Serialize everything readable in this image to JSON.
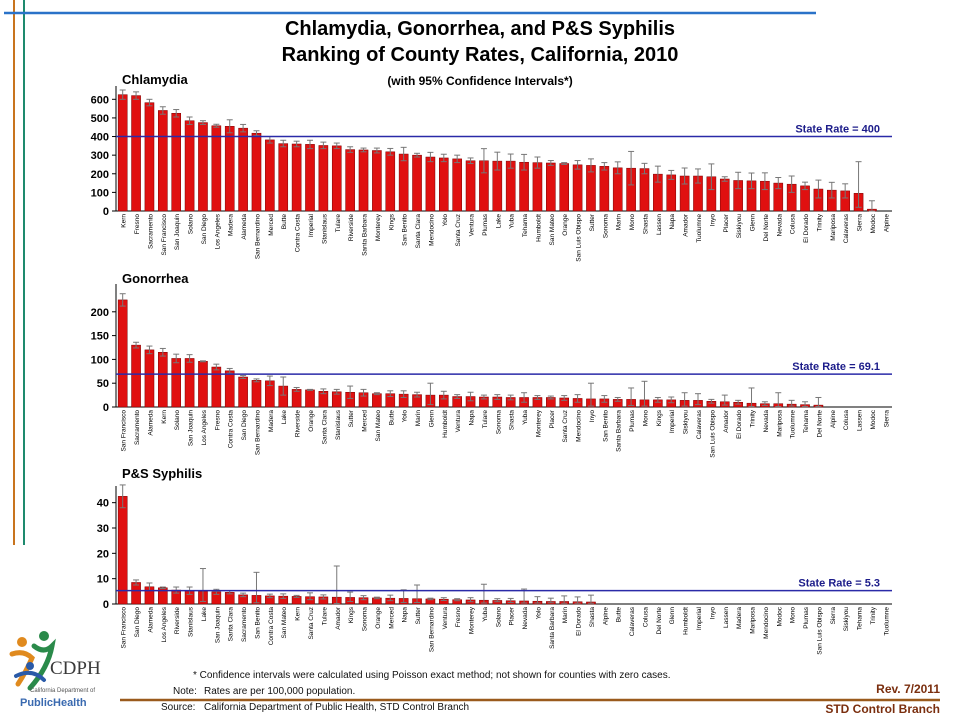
{
  "header": {
    "title_line1": "Chlamydia, Gonorrhea, and P&S Syphilis",
    "title_line2": "Ranking of County Rates, California, 2010",
    "subtitle": "(with 95% Confidence Intervals*)"
  },
  "colors": {
    "bar": "#e01010",
    "bar_edge": "#7a0000",
    "state_line": "#2a2aa8",
    "state_label": "#1c1c8a",
    "rule_blue": "#2a72c8",
    "rule_orange": "#c8741e",
    "rule_teal": "#1e8a6e",
    "rule_brown": "#9a5a1c",
    "rev_text": "#7a2e0e"
  },
  "chart_data": [
    {
      "type": "bar",
      "title": "Chlamydia",
      "ylim": [
        0,
        650
      ],
      "yticks": [
        0,
        100,
        200,
        300,
        400,
        500,
        600
      ],
      "state_rate": 400,
      "state_rate_label": "State Rate = 400",
      "categories": [
        "Kern",
        "Fresno",
        "Sacramento",
        "San Francisco",
        "San Joaquin",
        "Solano",
        "San Diego",
        "Los Angeles",
        "Madera",
        "Alameda",
        "San Bernardino",
        "Merced",
        "Butte",
        "Contra Costa",
        "Imperial",
        "Stanislaus",
        "Tulare",
        "Riverside",
        "Santa Barbara",
        "Monterey",
        "Kings",
        "San Benito",
        "Santa Clara",
        "Mendocino",
        "Yolo",
        "Santa Cruz",
        "Ventura",
        "Plumas",
        "Lake",
        "Yuba",
        "Tehama",
        "Humboldt",
        "San Mateo",
        "Orange",
        "San Luis Obispo",
        "Sutter",
        "Sonoma",
        "Marin",
        "Mono",
        "Shasta",
        "Lassen",
        "Napa",
        "Amador",
        "Tuolumne",
        "Inyo",
        "Placer",
        "Siskiyou",
        "Glenn",
        "Del Norte",
        "Nevada",
        "Colusa",
        "El Dorado",
        "Trinity",
        "Mariposa",
        "Calaveras",
        "Sierra",
        "Modoc",
        "Alpine"
      ],
      "values": [
        625,
        620,
        582,
        540,
        525,
        485,
        475,
        458,
        455,
        445,
        418,
        382,
        362,
        360,
        358,
        352,
        350,
        330,
        328,
        325,
        318,
        306,
        300,
        290,
        285,
        280,
        270,
        270,
        268,
        268,
        262,
        260,
        258,
        255,
        248,
        245,
        240,
        232,
        230,
        228,
        198,
        194,
        188,
        188,
        184,
        172,
        164,
        162,
        160,
        150,
        144,
        135,
        118,
        112,
        108,
        95,
        10,
        0
      ],
      "ci_low": [
        600,
        600,
        565,
        520,
        505,
        465,
        465,
        450,
        420,
        425,
        405,
        365,
        345,
        345,
        335,
        335,
        335,
        315,
        318,
        312,
        300,
        270,
        290,
        265,
        265,
        260,
        255,
        205,
        220,
        230,
        220,
        230,
        245,
        250,
        225,
        210,
        220,
        200,
        140,
        200,
        155,
        170,
        145,
        150,
        115,
        160,
        120,
        120,
        115,
        120,
        100,
        115,
        70,
        70,
        70,
        20,
        0,
        0
      ],
      "ci_high": [
        650,
        640,
        600,
        560,
        545,
        505,
        485,
        466,
        490,
        465,
        431,
        400,
        380,
        375,
        380,
        370,
        365,
        345,
        338,
        338,
        336,
        342,
        310,
        315,
        305,
        300,
        285,
        335,
        316,
        306,
        304,
        290,
        271,
        260,
        271,
        280,
        260,
        264,
        320,
        256,
        241,
        218,
        231,
        226,
        253,
        184,
        208,
        204,
        205,
        180,
        188,
        155,
        166,
        154,
        146,
        265,
        55,
        0
      ],
      "xlabel": "",
      "ylabel": ""
    },
    {
      "type": "bar",
      "title": "Gonorrhea",
      "ylim": [
        0,
        250
      ],
      "yticks": [
        0,
        50,
        100,
        150,
        200
      ],
      "state_rate": 69.1,
      "state_rate_label": "State Rate = 69.1",
      "categories": [
        "San Francisco",
        "Sacramento",
        "Alameda",
        "Kern",
        "Solano",
        "San Joaquin",
        "Los Angeles",
        "Fresno",
        "Contra Costa",
        "San Diego",
        "San Bernardino",
        "Madera",
        "Lake",
        "Riverside",
        "Orange",
        "Santa Clara",
        "Stanislaus",
        "Sutter",
        "Merced",
        "San Mateo",
        "Butte",
        "Yolo",
        "Marin",
        "Glenn",
        "Humboldt",
        "Ventura",
        "Napa",
        "Tulare",
        "Sonoma",
        "Shasta",
        "Yuba",
        "Monterey",
        "Placer",
        "Santa Cruz",
        "Mendocino",
        "Inyo",
        "San Benito",
        "Santa Barbara",
        "Plumas",
        "Mono",
        "Kings",
        "Imperial",
        "Siskiyou",
        "Calaveras",
        "San Luis Obispo",
        "Amador",
        "El Dorado",
        "Trinity",
        "Nevada",
        "Mariposa",
        "Tuolumne",
        "Tehama",
        "Del Norte",
        "Alpine",
        "Colusa",
        "Lassen",
        "Modoc",
        "Sierra"
      ],
      "values": [
        225,
        130,
        120,
        115,
        102,
        102,
        96,
        84,
        76,
        63,
        56,
        55,
        44,
        37,
        36,
        33,
        32,
        31,
        30,
        28,
        28,
        27,
        26,
        25,
        25,
        22,
        22,
        21,
        21,
        20,
        20,
        20,
        20,
        19,
        18,
        17,
        17,
        16,
        16,
        15,
        15,
        15,
        14,
        14,
        12,
        11,
        10,
        8,
        7,
        7,
        6,
        5,
        4,
        0,
        0,
        0,
        0,
        0
      ],
      "ci_low": [
        212,
        124,
        112,
        107,
        93,
        94,
        95,
        78,
        71,
        60,
        53,
        45,
        25,
        33,
        35,
        28,
        27,
        18,
        23,
        26,
        22,
        20,
        21,
        5,
        17,
        18,
        13,
        17,
        16,
        15,
        10,
        16,
        17,
        14,
        10,
        2,
        10,
        12,
        3,
        2,
        10,
        9,
        2,
        5,
        8,
        4,
        6,
        1,
        3,
        1,
        2,
        1,
        1,
        0,
        0,
        0,
        0,
        0
      ],
      "ci_high": [
        238,
        136,
        128,
        123,
        111,
        110,
        97,
        90,
        81,
        66,
        59,
        65,
        63,
        41,
        37,
        38,
        37,
        44,
        37,
        30,
        34,
        34,
        31,
        50,
        33,
        26,
        31,
        25,
        26,
        25,
        30,
        24,
        23,
        24,
        26,
        50,
        24,
        20,
        40,
        54,
        20,
        21,
        30,
        28,
        16,
        25,
        14,
        40,
        11,
        30,
        14,
        11,
        20,
        0,
        0,
        0,
        0,
        0
      ],
      "xlabel": "",
      "ylabel": ""
    },
    {
      "type": "bar",
      "title": "P&S Syphilis",
      "ylim": [
        0,
        45
      ],
      "yticks": [
        0,
        10,
        20,
        30,
        40
      ],
      "state_rate": 5.3,
      "state_rate_label": "State Rate = 5.3",
      "categories": [
        "San Francisco",
        "San Diego",
        "Alameda",
        "Los Angeles",
        "Riverside",
        "Stanislaus",
        "Lake",
        "San Joaquin",
        "Santa Clara",
        "Sacramento",
        "San Benito",
        "Contra Costa",
        "San Mateo",
        "Kern",
        "Santa Cruz",
        "Tulare",
        "Amador",
        "Kings",
        "Sonoma",
        "Orange",
        "Merced",
        "Napa",
        "Sutter",
        "San Bernardino",
        "Ventura",
        "Fresno",
        "Monterey",
        "Yuba",
        "Solano",
        "Placer",
        "Nevada",
        "Yolo",
        "Santa Barbara",
        "Marin",
        "El Dorado",
        "Shasta",
        "Alpine",
        "Butte",
        "Calaveras",
        "Colusa",
        "Del Norte",
        "Glenn",
        "Humboldt",
        "Imperial",
        "Inyo",
        "Lassen",
        "Madera",
        "Mariposa",
        "Mendocino",
        "Modoc",
        "Mono",
        "Plumas",
        "San Luis Obispo",
        "Sierra",
        "Siskiyou",
        "Tehama",
        "Trinity",
        "Tuolumne"
      ],
      "values": [
        42.5,
        8.5,
        6.8,
        6.4,
        5.5,
        5.2,
        5.0,
        4.8,
        4.6,
        3.6,
        3.4,
        3.2,
        3.1,
        3.0,
        2.9,
        2.8,
        2.7,
        2.6,
        2.5,
        2.4,
        2.3,
        2.2,
        2.1,
        2.0,
        1.9,
        1.7,
        1.6,
        1.5,
        1.4,
        1.3,
        1.2,
        1.1,
        1.0,
        1.0,
        0.9,
        0.8,
        0,
        0,
        0,
        0,
        0,
        0,
        0,
        0,
        0,
        0,
        0,
        0,
        0,
        0,
        0,
        0,
        0,
        0,
        0,
        0,
        0,
        0
      ],
      "ci_low": [
        38,
        7.5,
        5.3,
        6.1,
        4.3,
        3.8,
        1.0,
        3.8,
        4.0,
        2.9,
        0.5,
        2.5,
        2.2,
        2.6,
        1.7,
        2.0,
        0.2,
        1.0,
        1.7,
        2.1,
        1.3,
        0.6,
        0.6,
        1.7,
        1.4,
        1.3,
        0.9,
        0.4,
        0.9,
        0.6,
        0.4,
        0.4,
        0.5,
        0.3,
        0.3,
        0.3,
        0,
        0,
        0,
        0,
        0,
        0,
        0,
        0,
        0,
        0,
        0,
        0,
        0,
        0,
        0,
        0,
        0,
        0,
        0,
        0,
        0,
        0
      ],
      "ci_high": [
        47,
        9.5,
        8.3,
        6.7,
        6.7,
        6.7,
        14.0,
        5.8,
        5.2,
        4.3,
        12.5,
        3.9,
        4.0,
        3.4,
        4.4,
        3.6,
        15.0,
        4.7,
        3.3,
        2.7,
        3.5,
        5.6,
        7.5,
        2.3,
        2.5,
        2.1,
        2.5,
        7.8,
        2.1,
        2.2,
        5.9,
        2.9,
        2.3,
        3.2,
        2.8,
        3.5,
        0,
        0,
        0,
        0,
        0,
        0,
        0,
        0,
        0,
        0,
        0,
        0,
        0,
        0,
        0,
        0,
        0,
        0,
        0,
        0,
        0,
        0
      ],
      "xlabel": "",
      "ylabel": ""
    }
  ],
  "footer": {
    "ci_note": "*  Confidence intervals were calculated using Poisson exact method; not shown for counties with zero cases.",
    "rates_label": "Note:",
    "rates_text": "Rates are per 100,000 population.",
    "source_label": "Source:",
    "source_text": "California Department of Public Health, STD Control Branch",
    "revision": "Rev. 7/2011",
    "branch": "STD Control Branch"
  },
  "logo": {
    "initials": "CDPH",
    "line1": "California Department of",
    "line2": "PublicHealth"
  }
}
